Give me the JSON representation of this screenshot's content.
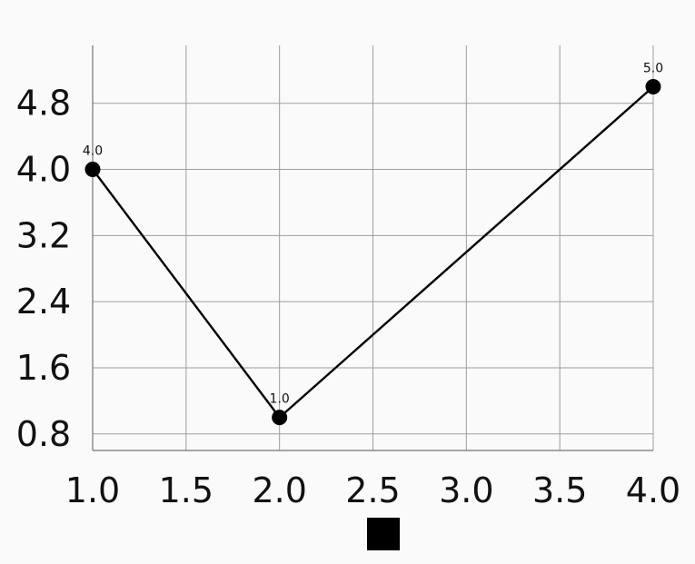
{
  "chart_data": {
    "type": "line",
    "title": "",
    "xlabel": "",
    "ylabel": "",
    "x": [
      1.0,
      2.0,
      4.0
    ],
    "series": [
      {
        "values": [
          4.0,
          1.0,
          5.0
        ],
        "data_labels": [
          "4.0",
          "1.0",
          "5.0"
        ]
      }
    ],
    "xlim": [
      1.0,
      4.0
    ],
    "ylim": [
      0.6,
      5.5
    ],
    "x_ticks": [
      1.0,
      1.5,
      2.0,
      2.5,
      3.0,
      3.5,
      4.0
    ],
    "x_tick_labels": [
      "1.0",
      "1.5",
      "2.0",
      "2.5",
      "3.0",
      "3.5",
      "4.0"
    ],
    "y_ticks": [
      0.8,
      1.6,
      2.4,
      3.2,
      4.0,
      4.8
    ],
    "y_tick_labels": [
      "0.8",
      "1.6",
      "2.4",
      "3.2",
      "4.0",
      "4.8"
    ],
    "grid": true,
    "legend": "bottom-center",
    "colors": {
      "line": "#000000",
      "grid": "#9e9e9e",
      "axis": "#757575",
      "background": "#fafafa",
      "legend_swatch": "#000000"
    }
  }
}
